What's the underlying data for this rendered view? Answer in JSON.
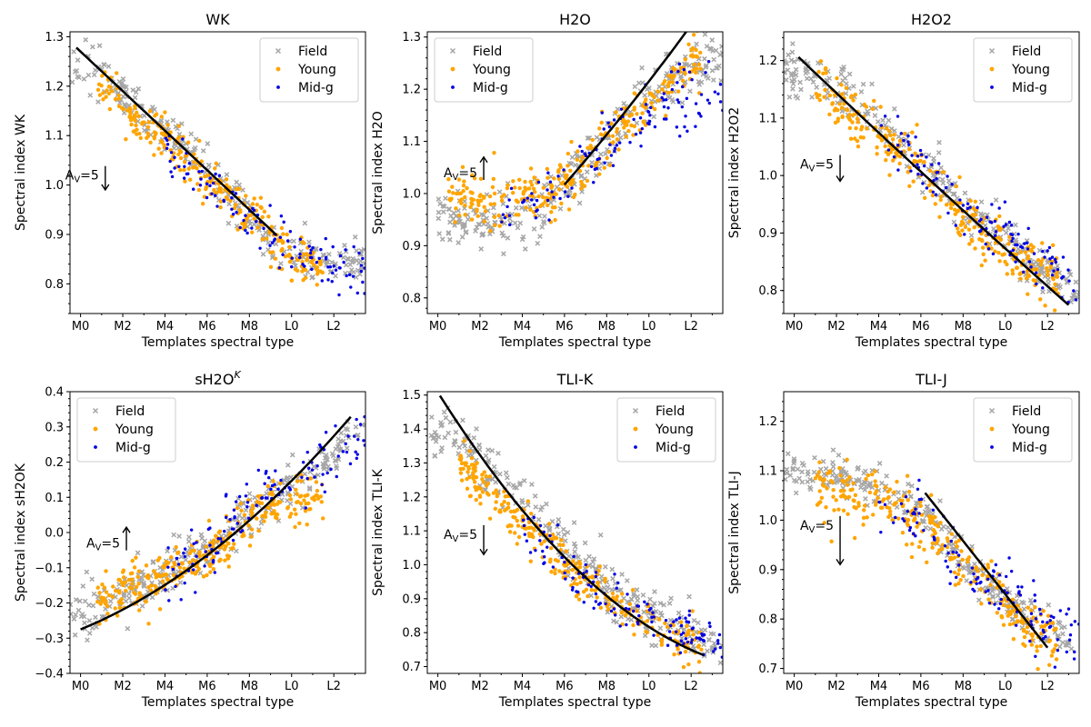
{
  "colors": {
    "field": "#a6a6a6",
    "young": "#ffa500",
    "mid": "#0000e6",
    "fit": "#000000"
  },
  "chart_data": [
    {
      "type": "scatter",
      "title": "WK",
      "title_sup": "",
      "xlabel": "Templates spectral type",
      "ylabel": "Spectral index WK",
      "xticks": [
        "M0",
        "M2",
        "M4",
        "M6",
        "M8",
        "L0",
        "L2"
      ],
      "xlim": [
        -0.5,
        13.5
      ],
      "yticks": [
        "0.8",
        "0.9",
        "1.0",
        "1.1",
        "1.2",
        "1.3"
      ],
      "ylim": [
        0.74,
        1.31
      ],
      "legend": [
        "Field",
        "Young",
        "Mid-g"
      ],
      "legend_position": "top-right",
      "annotation": {
        "text": "A",
        "sub": "V",
        "suffix": "=5",
        "x": 1,
        "y": 1.02,
        "arrow_to": 0.99
      },
      "fit": {
        "x": [
          -0.2,
          9.3
        ],
        "coef": [
          1.27,
          -0.04,
          0
        ]
      },
      "series": [
        {
          "name": "Field",
          "start": -0.5,
          "end": 13.5,
          "mode": "piecewise",
          "points": [
            [
              -0.5,
              1.25
            ],
            [
              1,
              1.22
            ],
            [
              3,
              1.15
            ],
            [
              5,
              1.07
            ],
            [
              7,
              0.98
            ],
            [
              9,
              0.89
            ],
            [
              11,
              0.86
            ],
            [
              13.5,
              0.83
            ]
          ],
          "noise": 0.022,
          "count": 260
        },
        {
          "name": "Young",
          "start": 0.8,
          "end": 11.5,
          "mode": "piecewise",
          "points": [
            [
              0.8,
              1.2
            ],
            [
              2,
              1.15
            ],
            [
              4,
              1.09
            ],
            [
              6,
              1.01
            ],
            [
              8,
              0.94
            ],
            [
              10,
              0.86
            ],
            [
              11.5,
              0.83
            ]
          ],
          "noise": 0.025,
          "count": 300
        },
        {
          "name": "Mid-g",
          "start": 4,
          "end": 13.5,
          "mode": "piecewise",
          "points": [
            [
              4,
              1.07
            ],
            [
              6,
              1.01
            ],
            [
              8,
              0.93
            ],
            [
              10,
              0.87
            ],
            [
              12,
              0.84
            ],
            [
              13.5,
              0.82
            ]
          ],
          "noise": 0.025,
          "count": 120
        }
      ]
    },
    {
      "type": "scatter",
      "title": "H2O",
      "title_sup": "",
      "xlabel": "Templates spectral type",
      "ylabel": "Spectral index H2O",
      "xticks": [
        "M0",
        "M2",
        "M4",
        "M6",
        "M8",
        "L0",
        "L2"
      ],
      "xlim": [
        -0.5,
        13.5
      ],
      "yticks": [
        "0.8",
        "0.9",
        "1.0",
        "1.1",
        "1.2",
        "1.3"
      ],
      "ylim": [
        0.77,
        1.31
      ],
      "legend": [
        "Field",
        "Young",
        "Mid-g"
      ],
      "legend_position": "top-left",
      "annotation": {
        "text": "A",
        "sub": "V",
        "suffix": "=5",
        "x": 2,
        "y": 1.04,
        "arrow_to": 1.07
      },
      "fit": {
        "x": [
          6,
          13
        ],
        "coef": [
          0.765,
          0.0375,
          0.00075
        ]
      },
      "series": [
        {
          "name": "Field",
          "start": 0,
          "end": 13.5,
          "mode": "piecewise",
          "points": [
            [
              0,
              0.945
            ],
            [
              2,
              0.945
            ],
            [
              4,
              0.955
            ],
            [
              5,
              0.97
            ],
            [
              6,
              1.02
            ],
            [
              8,
              1.1
            ],
            [
              10,
              1.18
            ],
            [
              12,
              1.24
            ],
            [
              13.5,
              1.26
            ]
          ],
          "noise": 0.025,
          "count": 280
        },
        {
          "name": "Young",
          "start": 0.5,
          "end": 12.5,
          "mode": "piecewise",
          "points": [
            [
              0.5,
              1.0
            ],
            [
              2,
              0.995
            ],
            [
              4,
              0.99
            ],
            [
              5,
              1.0
            ],
            [
              6,
              1.03
            ],
            [
              8,
              1.1
            ],
            [
              10,
              1.18
            ],
            [
              12,
              1.25
            ],
            [
              12.5,
              1.27
            ]
          ],
          "noise": 0.025,
          "count": 300
        },
        {
          "name": "Mid-g",
          "start": 3,
          "end": 13.5,
          "mode": "piecewise",
          "points": [
            [
              3,
              0.965
            ],
            [
              5,
              0.98
            ],
            [
              7,
              1.06
            ],
            [
              9,
              1.12
            ],
            [
              11,
              1.18
            ],
            [
              13.5,
              1.2
            ]
          ],
          "noise": 0.035,
          "count": 120
        }
      ]
    },
    {
      "type": "scatter",
      "title": "H2O2",
      "title_sup": "",
      "xlabel": "Templates spectral type",
      "ylabel": "Spectral index H2O2",
      "xticks": [
        "M0",
        "M2",
        "M4",
        "M6",
        "M8",
        "L0",
        "L2"
      ],
      "xlim": [
        -0.5,
        13.5
      ],
      "yticks": [
        "0.8",
        "0.9",
        "1.0",
        "1.1",
        "1.2"
      ],
      "ylim": [
        0.76,
        1.25
      ],
      "legend": [
        "Field",
        "Young",
        "Mid-g"
      ],
      "legend_position": "top-right",
      "annotation": {
        "text": "A",
        "sub": "V",
        "suffix": "=5",
        "x": 2,
        "y": 1.02,
        "arrow_to": 0.99
      },
      "fit": {
        "x": [
          0.2,
          13
        ],
        "coef": [
          1.213,
          -0.035,
          0.0001
        ]
      },
      "series": [
        {
          "name": "Field",
          "start": -0.5,
          "end": 13.5,
          "mode": "piecewise",
          "points": [
            [
              -0.5,
              1.18
            ],
            [
              1,
              1.18
            ],
            [
              3,
              1.13
            ],
            [
              5,
              1.06
            ],
            [
              7,
              0.99
            ],
            [
              9,
              0.92
            ],
            [
              11,
              0.86
            ],
            [
              13.5,
              0.8
            ]
          ],
          "noise": 0.02,
          "count": 280
        },
        {
          "name": "Young",
          "start": 1,
          "end": 12.5,
          "mode": "piecewise",
          "points": [
            [
              1,
              1.16
            ],
            [
              3,
              1.1
            ],
            [
              5,
              1.04
            ],
            [
              7,
              0.97
            ],
            [
              9,
              0.9
            ],
            [
              11,
              0.85
            ],
            [
              12.5,
              0.82
            ]
          ],
          "noise": 0.025,
          "count": 300
        },
        {
          "name": "Mid-g",
          "start": 4,
          "end": 13.5,
          "mode": "piecewise",
          "points": [
            [
              4,
              1.08
            ],
            [
              6,
              1.02
            ],
            [
              8,
              0.95
            ],
            [
              10,
              0.89
            ],
            [
              12,
              0.84
            ],
            [
              13.5,
              0.81
            ]
          ],
          "noise": 0.025,
          "count": 120
        }
      ]
    },
    {
      "type": "scatter",
      "title": "sH2O",
      "title_sup": "K",
      "xlabel": "Templates spectral type",
      "ylabel": "Spectral index sH2OK",
      "xticks": [
        "M0",
        "M2",
        "M4",
        "M6",
        "M8",
        "L0",
        "L2"
      ],
      "xlim": [
        -0.5,
        13.5
      ],
      "yticks": [
        "−0.4",
        "−0.3",
        "−0.2",
        "−0.1",
        "0.0",
        "0.1",
        "0.2",
        "0.3",
        "0.4"
      ],
      "ylim": [
        -0.4,
        0.4
      ],
      "legend": [
        "Field",
        "Young",
        "Mid-g"
      ],
      "legend_position": "top-left",
      "annotation": {
        "text": "A",
        "sub": "V",
        "suffix": "=5",
        "x": 2,
        "y": -0.03,
        "arrow_to": 0.015
      },
      "fit": {
        "x": [
          0,
          12.8
        ],
        "coef": [
          -0.275,
          0.0245,
          0.00177
        ]
      },
      "series": [
        {
          "name": "Field",
          "start": -0.5,
          "end": 13.5,
          "mode": "piecewise",
          "points": [
            [
              -0.5,
              -0.24
            ],
            [
              1,
              -0.22
            ],
            [
              3,
              -0.15
            ],
            [
              5,
              -0.08
            ],
            [
              7,
              0.0
            ],
            [
              9,
              0.1
            ],
            [
              11,
              0.18
            ],
            [
              13.5,
              0.3
            ]
          ],
          "noise": 0.035,
          "count": 280
        },
        {
          "name": "Young",
          "start": 0.8,
          "end": 11.5,
          "mode": "piecewise",
          "points": [
            [
              0.8,
              -0.18
            ],
            [
              3,
              -0.15
            ],
            [
              5,
              -0.1
            ],
            [
              7,
              -0.02
            ],
            [
              9,
              0.08
            ],
            [
              11.5,
              0.1
            ]
          ],
          "noise": 0.035,
          "count": 300
        },
        {
          "name": "Mid-g",
          "start": 4,
          "end": 13.5,
          "mode": "piecewise",
          "points": [
            [
              4,
              -0.12
            ],
            [
              6,
              -0.06
            ],
            [
              8,
              0.1
            ],
            [
              10,
              0.15
            ],
            [
              12,
              0.22
            ],
            [
              13.5,
              0.28
            ]
          ],
          "noise": 0.045,
          "count": 120
        }
      ]
    },
    {
      "type": "scatter",
      "title": "TLI-K",
      "title_sup": "",
      "xlabel": "Templates spectral type",
      "ylabel": "Spectral index TLI-K",
      "xticks": [
        "M0",
        "M2",
        "M4",
        "M6",
        "M8",
        "L0",
        "L2"
      ],
      "xlim": [
        -0.5,
        13.5
      ],
      "yticks": [
        "0.7",
        "0.8",
        "0.9",
        "1.0",
        "1.1",
        "1.2",
        "1.3",
        "1.4",
        "1.5"
      ],
      "ylim": [
        0.68,
        1.51
      ],
      "legend": [
        "Field",
        "Young",
        "Mid-g"
      ],
      "legend_position": "top-right",
      "annotation": {
        "text": "A",
        "sub": "V",
        "suffix": "=5",
        "x": 2,
        "y": 1.09,
        "arrow_to": 1.03
      },
      "fit": {
        "x": [
          0.1,
          12.6
        ],
        "coef": [
          1.508,
          -0.0985,
          0.00294
        ]
      },
      "series": [
        {
          "name": "Field",
          "start": -0.5,
          "end": 13.5,
          "mode": "piecewise",
          "points": [
            [
              -0.5,
              1.38
            ],
            [
              1,
              1.37
            ],
            [
              3,
              1.25
            ],
            [
              5,
              1.13
            ],
            [
              7,
              0.99
            ],
            [
              9,
              0.88
            ],
            [
              11,
              0.82
            ],
            [
              13.5,
              0.76
            ]
          ],
          "noise": 0.035,
          "count": 280
        },
        {
          "name": "Young",
          "start": 1,
          "end": 12.5,
          "mode": "piecewise",
          "points": [
            [
              1,
              1.3
            ],
            [
              3,
              1.18
            ],
            [
              5,
              1.06
            ],
            [
              7,
              0.96
            ],
            [
              9,
              0.87
            ],
            [
              11,
              0.8
            ],
            [
              12.5,
              0.76
            ]
          ],
          "noise": 0.035,
          "count": 300
        },
        {
          "name": "Mid-g",
          "start": 4,
          "end": 13.5,
          "mode": "piecewise",
          "points": [
            [
              4,
              1.1
            ],
            [
              6,
              1.01
            ],
            [
              8,
              0.91
            ],
            [
              10,
              0.84
            ],
            [
              12,
              0.79
            ],
            [
              13.5,
              0.76
            ]
          ],
          "noise": 0.035,
          "count": 120
        }
      ]
    },
    {
      "type": "scatter",
      "title": "TLI-J",
      "title_sup": "",
      "xlabel": "Templates spectral type",
      "ylabel": "Spectral index TLI-J",
      "xticks": [
        "M0",
        "M2",
        "M4",
        "M6",
        "M8",
        "L0",
        "L2"
      ],
      "xlim": [
        -0.5,
        13.5
      ],
      "yticks": [
        "0.7",
        "0.8",
        "0.9",
        "1.0",
        "1.1",
        "1.2"
      ],
      "ylim": [
        0.69,
        1.26
      ],
      "legend": [
        "Field",
        "Young",
        "Mid-g"
      ],
      "legend_position": "top-right",
      "annotation": {
        "text": "A",
        "sub": "V",
        "suffix": "=5",
        "x": 2,
        "y": 0.99,
        "arrow_to": 0.91
      },
      "fit": {
        "x": [
          6.2,
          12
        ],
        "coef": [
          1.39,
          -0.054,
          0
        ]
      },
      "series": [
        {
          "name": "Field",
          "start": -0.5,
          "end": 13.5,
          "mode": "piecewise",
          "points": [
            [
              -0.5,
              1.09
            ],
            [
              2,
              1.09
            ],
            [
              4,
              1.07
            ],
            [
              6,
              1.02
            ],
            [
              8,
              0.92
            ],
            [
              10,
              0.84
            ],
            [
              12,
              0.77
            ],
            [
              13.5,
              0.77
            ]
          ],
          "noise": 0.02,
          "count": 280
        },
        {
          "name": "Young",
          "start": 1,
          "end": 12.5,
          "mode": "piecewise",
          "points": [
            [
              1,
              1.07
            ],
            [
              3,
              1.05
            ],
            [
              5,
              1.03
            ],
            [
              7,
              0.95
            ],
            [
              9,
              0.88
            ],
            [
              11,
              0.79
            ],
            [
              12.5,
              0.75
            ]
          ],
          "noise": 0.03,
          "count": 300
        },
        {
          "name": "Mid-g",
          "start": 4,
          "end": 13.5,
          "mode": "piecewise",
          "points": [
            [
              4,
              1.04
            ],
            [
              6,
              1.0
            ],
            [
              8,
              0.92
            ],
            [
              10,
              0.85
            ],
            [
              12,
              0.8
            ],
            [
              13.5,
              0.79
            ]
          ],
          "noise": 0.035,
          "count": 120
        }
      ]
    }
  ]
}
